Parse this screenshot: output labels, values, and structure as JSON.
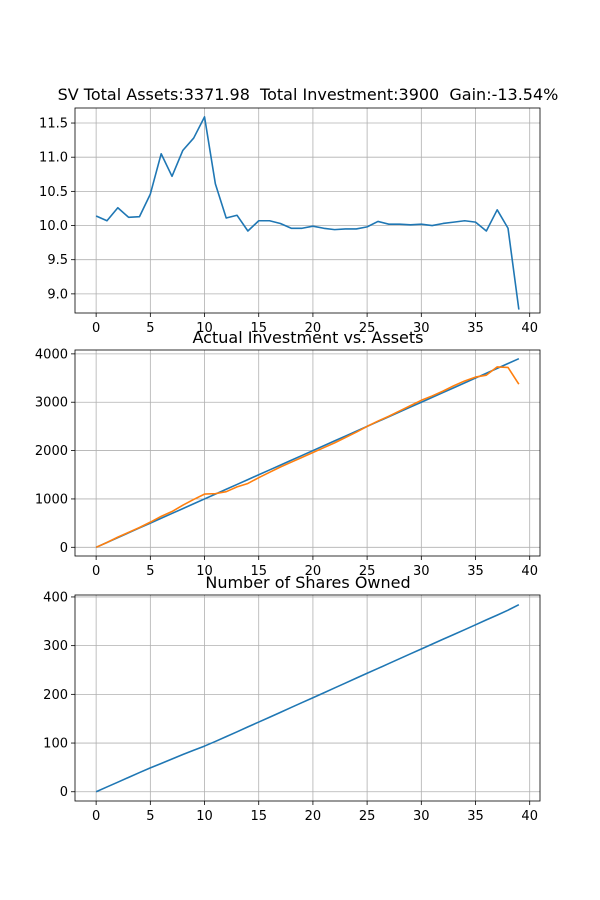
{
  "chart_data": [
    {
      "type": "line",
      "title": "SV Total Assets:3371.98  Total Investment:3900  Gain:-13.54%",
      "xlim": [
        -1.95,
        40.95
      ],
      "ylim": [
        8.72,
        11.72
      ],
      "xticks": [
        "0",
        "5",
        "10",
        "15",
        "20",
        "25",
        "30",
        "35",
        "40"
      ],
      "xtick_values": [
        0,
        5,
        10,
        15,
        20,
        25,
        30,
        35,
        40
      ],
      "yticks": [
        "9.0",
        "9.5",
        "10.0",
        "10.5",
        "11.0",
        "11.5"
      ],
      "ytick_values": [
        9.0,
        9.5,
        10.0,
        10.5,
        11.0,
        11.5
      ],
      "grid": true,
      "series": [
        {
          "color": "#1f77b4",
          "x": [
            0,
            1,
            2,
            3,
            4,
            5,
            6,
            7,
            8,
            9,
            10,
            11,
            12,
            13,
            14,
            15,
            16,
            17,
            18,
            19,
            20,
            21,
            22,
            23,
            24,
            25,
            26,
            27,
            28,
            29,
            30,
            31,
            32,
            33,
            34,
            35,
            36,
            37,
            38,
            39
          ],
          "values": [
            10.14,
            10.07,
            10.26,
            10.12,
            10.13,
            10.46,
            11.05,
            10.72,
            11.1,
            11.28,
            11.59,
            10.61,
            10.11,
            10.15,
            9.92,
            10.07,
            10.07,
            10.03,
            9.96,
            9.96,
            9.99,
            9.96,
            9.94,
            9.95,
            9.95,
            9.98,
            10.06,
            10.02,
            10.02,
            10.01,
            10.02,
            10.0,
            10.03,
            10.05,
            10.07,
            10.05,
            9.92,
            10.23,
            9.96,
            8.77
          ]
        }
      ]
    },
    {
      "type": "line",
      "title": "Actual Investment vs. Assets",
      "xlim": [
        -1.95,
        40.95
      ],
      "ylim": [
        -180,
        4080
      ],
      "xticks": [
        "0",
        "5",
        "10",
        "15",
        "20",
        "25",
        "30",
        "35",
        "40"
      ],
      "xtick_values": [
        0,
        5,
        10,
        15,
        20,
        25,
        30,
        35,
        40
      ],
      "yticks": [
        "0",
        "1000",
        "2000",
        "3000",
        "4000"
      ],
      "ytick_values": [
        0,
        1000,
        2000,
        3000,
        4000
      ],
      "grid": true,
      "series": [
        {
          "color": "#1f77b4",
          "x": [
            0,
            1,
            2,
            3,
            4,
            5,
            6,
            7,
            8,
            9,
            10,
            11,
            12,
            13,
            14,
            15,
            16,
            17,
            18,
            19,
            20,
            21,
            22,
            23,
            24,
            25,
            26,
            27,
            28,
            29,
            30,
            31,
            32,
            33,
            34,
            35,
            36,
            37,
            38,
            39
          ],
          "values": [
            0,
            100,
            200,
            300,
            400,
            500,
            600,
            700,
            800,
            900,
            1000,
            1100,
            1200,
            1300,
            1400,
            1500,
            1600,
            1700,
            1800,
            1900,
            2000,
            2100,
            2200,
            2300,
            2400,
            2500,
            2600,
            2700,
            2800,
            2900,
            3000,
            3100,
            3200,
            3300,
            3400,
            3500,
            3600,
            3700,
            3800,
            3900
          ]
        },
        {
          "color": "#ff7f0e",
          "x": [
            0,
            1,
            2,
            3,
            4,
            5,
            6,
            7,
            8,
            9,
            10,
            11,
            12,
            13,
            14,
            15,
            16,
            17,
            18,
            19,
            20,
            21,
            22,
            23,
            24,
            25,
            26,
            27,
            28,
            29,
            30,
            31,
            32,
            33,
            34,
            35,
            36,
            37,
            38,
            39
          ],
          "values": [
            0,
            100,
            210,
            310,
            410,
            520,
            640,
            740,
            870,
            990,
            1100,
            1110,
            1150,
            1250,
            1320,
            1440,
            1550,
            1660,
            1760,
            1860,
            1960,
            2060,
            2160,
            2270,
            2380,
            2500,
            2610,
            2710,
            2820,
            2930,
            3040,
            3130,
            3230,
            3340,
            3440,
            3520,
            3560,
            3730,
            3720,
            3372
          ]
        }
      ]
    },
    {
      "type": "line",
      "title": "Number of Shares Owned",
      "xlim": [
        -1.95,
        40.95
      ],
      "ylim": [
        -19,
        404
      ],
      "xticks": [
        "0",
        "5",
        "10",
        "15",
        "20",
        "25",
        "30",
        "35",
        "40"
      ],
      "xtick_values": [
        0,
        5,
        10,
        15,
        20,
        25,
        30,
        35,
        40
      ],
      "yticks": [
        "0",
        "100",
        "200",
        "300",
        "400"
      ],
      "ytick_values": [
        0,
        100,
        200,
        300,
        400
      ],
      "grid": true,
      "series": [
        {
          "color": "#1f77b4",
          "x": [
            0,
            1,
            2,
            3,
            4,
            5,
            6,
            7,
            8,
            9,
            10,
            11,
            12,
            13,
            14,
            15,
            16,
            17,
            18,
            19,
            20,
            21,
            22,
            23,
            24,
            25,
            26,
            27,
            28,
            29,
            30,
            31,
            32,
            33,
            34,
            35,
            36,
            37,
            38,
            39
          ],
          "values": [
            0,
            9.9,
            19.6,
            29.5,
            39.4,
            49,
            58,
            67.3,
            76.4,
            85.2,
            93.8,
            103.3,
            113.2,
            123.1,
            133.2,
            143.1,
            153,
            163,
            173.1,
            183.1,
            193.1,
            203.1,
            213.2,
            223.2,
            233.3,
            243.3,
            253.2,
            263.2,
            273.2,
            283.2,
            293.1,
            303.1,
            313.1,
            322.9,
            332.8,
            342.8,
            352.9,
            362.7,
            372.8,
            384.1
          ]
        }
      ]
    }
  ]
}
